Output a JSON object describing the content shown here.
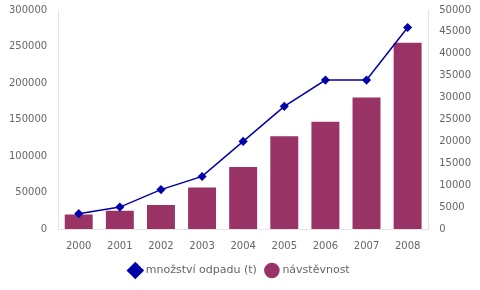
{
  "chart_data": {
    "type": "bar",
    "categories": [
      "2000",
      "2001",
      "2002",
      "2003",
      "2004",
      "2005",
      "2006",
      "2007",
      "2008"
    ],
    "series": [
      {
        "name": "návstěvnost",
        "type": "bar",
        "color": "#993366",
        "values": [
          20000,
          25000,
          33000,
          57000,
          85000,
          127000,
          147000,
          180000,
          255000
        ]
      },
      {
        "name": "množství odpadu (t)",
        "type": "line",
        "axis": "y2",
        "color": "#0000AA",
        "marker": "diamond",
        "values": [
          3500,
          5000,
          9000,
          12000,
          20000,
          28000,
          34000,
          34000,
          46000
        ]
      }
    ],
    "ylim": [
      0,
      300000
    ],
    "yticks": [
      0,
      50000,
      100000,
      150000,
      200000,
      250000,
      300000
    ],
    "y2lim": [
      0,
      50000
    ],
    "y2ticks": [
      0,
      5000,
      10000,
      15000,
      20000,
      25000,
      30000,
      35000,
      40000,
      45000,
      50000
    ],
    "grid": false,
    "legend": "bottom"
  }
}
